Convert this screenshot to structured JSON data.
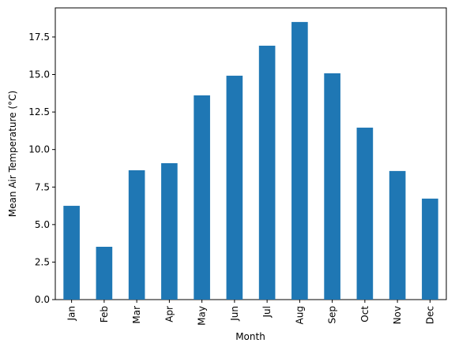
{
  "chart_data": {
    "type": "bar",
    "x_label": "Month",
    "y_label": "Mean Air Temperature (°C)",
    "categories": [
      "Jan",
      "Feb",
      "Mar",
      "Apr",
      "May",
      "Jun",
      "Jul",
      "Aug",
      "Sep",
      "Oct",
      "Nov",
      "Dec"
    ],
    "values": [
      6.25,
      3.52,
      8.62,
      9.09,
      13.61,
      14.92,
      16.92,
      18.5,
      15.08,
      11.46,
      8.57,
      6.73
    ],
    "color": "#1f77b4",
    "ylim": [
      0,
      19.44
    ],
    "yticks": [
      {
        "value": 0,
        "label": "0.0"
      },
      2.5,
      {
        "value": 5,
        "label": "5.0"
      },
      7.5,
      {
        "value": 10,
        "label": "10.0"
      },
      12.5,
      {
        "value": 15,
        "label": "15.0"
      },
      17.5
    ],
    "grid": false
  }
}
